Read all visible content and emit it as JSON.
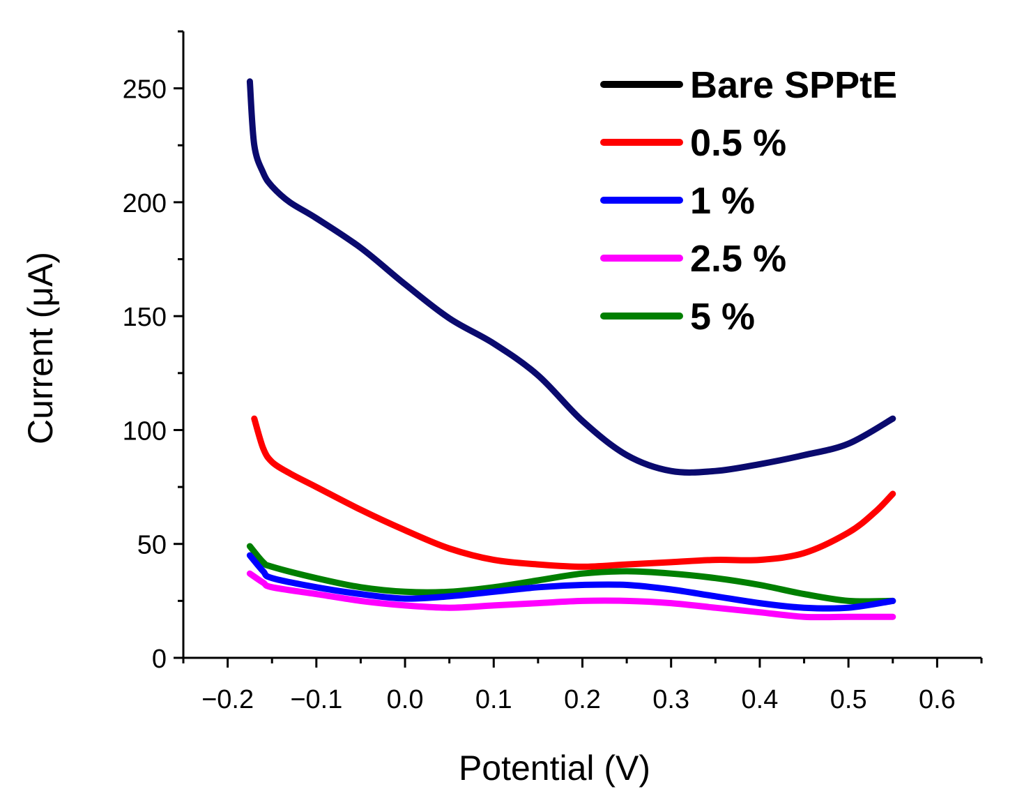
{
  "chart_data": {
    "type": "line",
    "xlabel": "Potential (V)",
    "ylabel": "Current (μA)",
    "xlim": [
      -0.25,
      0.65
    ],
    "ylim": [
      0,
      275
    ],
    "xticks": [
      -0.2,
      -0.1,
      0.0,
      0.1,
      0.2,
      0.3,
      0.4,
      0.5,
      0.6
    ],
    "xtick_labels": [
      "−0.2",
      "−0.1",
      "0.0",
      "0.1",
      "0.2",
      "0.3",
      "0.4",
      "0.5",
      "0.6"
    ],
    "yticks": [
      0,
      50,
      100,
      150,
      200,
      250
    ],
    "ytick_labels": [
      "0",
      "50",
      "100",
      "150",
      "200",
      "250"
    ],
    "legend_position": "top-right",
    "series": [
      {
        "name": "Bare SPPtE",
        "color": "#0a0a6e",
        "legend_color": "#000000",
        "x": [
          -0.175,
          -0.17,
          -0.16,
          -0.15,
          -0.13,
          -0.1,
          -0.05,
          0.0,
          0.05,
          0.1,
          0.15,
          0.2,
          0.25,
          0.3,
          0.35,
          0.4,
          0.45,
          0.5,
          0.55
        ],
        "y": [
          253,
          225,
          213,
          207,
          200,
          193,
          180,
          164,
          149,
          138,
          124,
          104,
          89,
          82,
          82,
          85,
          89,
          94,
          105
        ]
      },
      {
        "name": "0.5 %",
        "color": "#ff0000",
        "legend_color": "#ff0000",
        "x": [
          -0.17,
          -0.16,
          -0.15,
          -0.13,
          -0.1,
          -0.05,
          0.0,
          0.05,
          0.1,
          0.15,
          0.2,
          0.25,
          0.3,
          0.35,
          0.4,
          0.45,
          0.5,
          0.53,
          0.55
        ],
        "y": [
          105,
          92,
          86,
          81,
          75,
          65,
          56,
          48,
          43,
          41,
          40,
          41,
          42,
          43,
          43,
          46,
          55,
          64,
          72
        ]
      },
      {
        "name": "1 %",
        "color": "#0000ff",
        "legend_color": "#0000ff",
        "x": [
          -0.175,
          -0.16,
          -0.15,
          -0.1,
          -0.05,
          0.0,
          0.05,
          0.1,
          0.15,
          0.2,
          0.25,
          0.3,
          0.35,
          0.4,
          0.45,
          0.5,
          0.55
        ],
        "y": [
          45,
          38,
          35,
          31,
          28,
          26,
          27,
          29,
          31,
          32,
          32,
          30,
          27,
          24,
          22,
          22,
          25
        ]
      },
      {
        "name": "2.5 %",
        "color": "#ff00ff",
        "legend_color": "#ff00ff",
        "x": [
          -0.175,
          -0.16,
          -0.15,
          -0.1,
          -0.05,
          0.0,
          0.05,
          0.1,
          0.15,
          0.2,
          0.25,
          0.3,
          0.35,
          0.4,
          0.45,
          0.5,
          0.55
        ],
        "y": [
          37,
          33,
          31,
          28,
          25,
          23,
          22,
          23,
          24,
          25,
          25,
          24,
          22,
          20,
          18,
          18,
          18
        ]
      },
      {
        "name": "5 %",
        "color": "#007f00",
        "legend_color": "#007f00",
        "x": [
          -0.175,
          -0.16,
          -0.15,
          -0.1,
          -0.05,
          0.0,
          0.05,
          0.1,
          0.15,
          0.2,
          0.25,
          0.3,
          0.35,
          0.4,
          0.45,
          0.5,
          0.55
        ],
        "y": [
          49,
          42,
          40,
          35,
          31,
          29,
          29,
          31,
          34,
          37,
          38,
          37,
          35,
          32,
          28,
          25,
          25
        ]
      }
    ]
  }
}
